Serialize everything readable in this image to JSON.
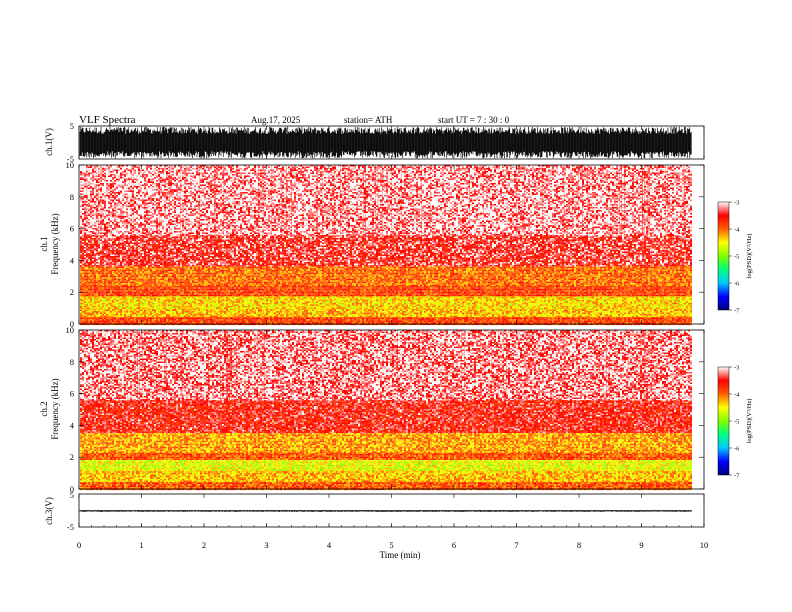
{
  "header": {
    "title": "VLF  Spectra",
    "date": "Aug.17, 2025",
    "station": "station= ATH",
    "start_ut": "start  UT  =    7  : 30 : 0"
  },
  "chart_data": [
    {
      "type": "line",
      "name": "ch1-waveform",
      "ylabel": "ch.1(V)",
      "ylim": [
        -5,
        5
      ],
      "yticks": [
        "5",
        "-5"
      ],
      "xlim": [
        0,
        10
      ],
      "data_end": 9.8,
      "amplitude": [
        -4.8,
        4.8
      ]
    },
    {
      "type": "heatmap",
      "name": "ch1-spectrogram",
      "ylabel_channel": "ch.1",
      "ylabel": "Frequency  (kHz)",
      "ylim": [
        0,
        10
      ],
      "yticks": [
        "0",
        "2",
        "4",
        "6",
        "8",
        "10"
      ],
      "xlim": [
        0,
        10
      ],
      "data_end": 9.8,
      "bands": [
        {
          "from": 0.0,
          "to": 0.5,
          "level": -3.8
        },
        {
          "from": 0.5,
          "to": 1.0,
          "level": -4.3
        },
        {
          "from": 1.0,
          "to": 1.8,
          "level": -4.4
        },
        {
          "from": 1.8,
          "to": 2.4,
          "level": -3.8
        },
        {
          "from": 2.4,
          "to": 3.7,
          "level": -4.0
        },
        {
          "from": 3.7,
          "to": 5.6,
          "level": -3.4
        },
        {
          "from": 5.6,
          "to": 10.0,
          "level": -3.15
        }
      ],
      "colorbar": {
        "label": "log(PSD)(V²/Hz)",
        "ticks": [
          "-3",
          "-4",
          "-5",
          "-6",
          "-7"
        ],
        "range": [
          -7,
          -3
        ]
      }
    },
    {
      "type": "heatmap",
      "name": "ch2-spectrogram",
      "ylabel_channel": "ch.2",
      "ylabel": "Frequency  (kHz)",
      "ylim": [
        0,
        10
      ],
      "yticks": [
        "0",
        "2",
        "4",
        "6",
        "8",
        "10"
      ],
      "xlim": [
        0,
        10
      ],
      "data_end": 9.8,
      "bands": [
        {
          "from": 0.0,
          "to": 0.5,
          "level": -3.9
        },
        {
          "from": 0.5,
          "to": 1.2,
          "level": -4.3
        },
        {
          "from": 1.2,
          "to": 1.9,
          "level": -4.6
        },
        {
          "from": 1.9,
          "to": 2.3,
          "level": -3.9
        },
        {
          "from": 2.3,
          "to": 3.6,
          "level": -4.2
        },
        {
          "from": 3.6,
          "to": 5.6,
          "level": -3.5
        },
        {
          "from": 5.6,
          "to": 10.0,
          "level": -3.2
        }
      ],
      "colorbar": {
        "label": "log(PSD)(V²/Hz)",
        "ticks": [
          "-3",
          "-4",
          "-5",
          "-6",
          "-7"
        ],
        "range": [
          -7,
          -3
        ]
      }
    },
    {
      "type": "line",
      "name": "ch3-waveform",
      "ylabel": "ch.3(V)",
      "ylim": [
        -5,
        5
      ],
      "yticks": [
        "5",
        "-5"
      ],
      "xlim": [
        0,
        10
      ],
      "data_end": 9.8,
      "amplitude": [
        -0.4,
        0.1
      ]
    }
  ],
  "x_axis": {
    "label": "Time  (min)",
    "ticks": [
      "0",
      "1",
      "2",
      "3",
      "4",
      "5",
      "6",
      "7",
      "8",
      "9",
      "10"
    ],
    "range": [
      0,
      10
    ]
  },
  "colors": {
    "colormap": [
      "#000080",
      "#0000ff",
      "#00c8ff",
      "#00ff80",
      "#80ff00",
      "#ffff00",
      "#ff6000",
      "#ff0000",
      "#ffffff"
    ]
  }
}
